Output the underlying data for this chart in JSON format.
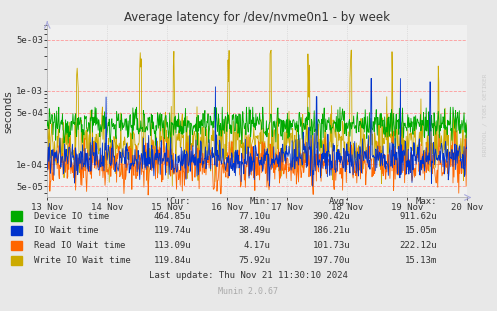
{
  "title": "Average latency for /dev/nvme0n1 - by week",
  "ylabel": "seconds",
  "background_color": "#e8e8e8",
  "plot_bg_color": "#f0f0f0",
  "grid_color_h": "#ff9999",
  "grid_color_v": "#cccccc",
  "ylim_low": 3.5e-05,
  "ylim_high": 0.008,
  "series": {
    "device_io": {
      "color": "#00aa00"
    },
    "io_wait": {
      "color": "#0033cc"
    },
    "read_io_wait": {
      "color": "#ff6600"
    },
    "write_io_wait": {
      "color": "#ccaa00"
    }
  },
  "legend_table": {
    "headers": [
      "Cur:",
      "Min:",
      "Avg:",
      "Max:"
    ],
    "rows": [
      [
        "Device IO time",
        "464.85u",
        "77.10u",
        "390.42u",
        "911.62u"
      ],
      [
        "IO Wait time",
        "119.74u",
        "38.49u",
        "186.21u",
        "15.05m"
      ],
      [
        "Read IO Wait time",
        "113.09u",
        "4.17u",
        "101.73u",
        "222.12u"
      ],
      [
        "Write IO Wait time",
        "119.84u",
        "75.92u",
        "197.70u",
        "15.13m"
      ]
    ],
    "row_colors": [
      "#00aa00",
      "#0033cc",
      "#ff6600",
      "#ccaa00"
    ]
  },
  "last_update": "Last update: Thu Nov 21 11:30:10 2024",
  "munin_version": "Munin 2.0.67",
  "watermark": "RRDTOOL / TOBI OETIKER",
  "xtick_labels": [
    "13 Nov",
    "14 Nov",
    "15 Nov",
    "16 Nov",
    "17 Nov",
    "18 Nov",
    "19 Nov",
    "20 Nov"
  ],
  "ytick_values": [
    5e-05,
    0.0001,
    0.0005,
    0.001,
    0.005
  ],
  "ytick_labels": [
    "5e-05",
    "1e-04",
    "5e-04",
    "1e-03",
    "5e-03"
  ],
  "num_points": 800
}
